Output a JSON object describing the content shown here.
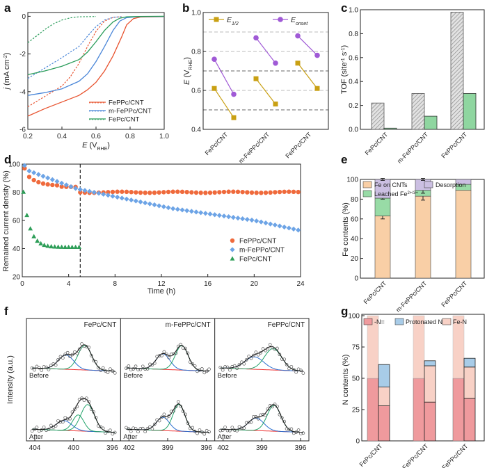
{
  "panels": {
    "a": "a",
    "b": "b",
    "c": "c",
    "d": "d",
    "e": "e",
    "f": "f",
    "g": "g"
  },
  "chart_data": [
    {
      "id": "a",
      "type": "line",
      "xlabel": "E (V RHE)",
      "ylabel": "j (mA cm-2)",
      "xlim": [
        0.2,
        1.0
      ],
      "ylim": [
        -6,
        0.2
      ],
      "xticks": [
        0.2,
        0.4,
        0.6,
        0.8,
        1.0
      ],
      "yticks": [
        0,
        -2,
        -4,
        -6
      ],
      "tick_labels_x": [
        "0.2",
        "0.4",
        "0.6",
        "0.8",
        "1.0"
      ],
      "tick_labels_y": [
        "0",
        "-2",
        "-4",
        "-6"
      ],
      "legend_position": "bottom-right",
      "series": [
        {
          "name": "FePPc/CNT",
          "color": "#e8532f",
          "solid": [
            [
              0.2,
              -5.3
            ],
            [
              0.3,
              -4.9
            ],
            [
              0.4,
              -4.55
            ],
            [
              0.5,
              -4.2
            ],
            [
              0.55,
              -3.9
            ],
            [
              0.6,
              -3.5
            ],
            [
              0.65,
              -2.9
            ],
            [
              0.7,
              -2.1
            ],
            [
              0.75,
              -1.1
            ],
            [
              0.78,
              -0.45
            ],
            [
              0.82,
              -0.12
            ],
            [
              0.86,
              -0.04
            ],
            [
              1.0,
              -0.02
            ]
          ],
          "dashed": [
            [
              0.2,
              -4.8
            ],
            [
              0.3,
              -4.25
            ],
            [
              0.4,
              -3.7
            ],
            [
              0.45,
              -3.2
            ],
            [
              0.5,
              -2.5
            ],
            [
              0.55,
              -1.6
            ],
            [
              0.6,
              -0.8
            ],
            [
              0.65,
              -0.25
            ],
            [
              0.7,
              -0.06
            ],
            [
              0.75,
              -0.02
            ]
          ]
        },
        {
          "name": "m-FePPc/CNT",
          "color": "#4a86d8",
          "solid": [
            [
              0.2,
              -4.2
            ],
            [
              0.3,
              -4.05
            ],
            [
              0.4,
              -3.85
            ],
            [
              0.5,
              -3.45
            ],
            [
              0.55,
              -3.05
            ],
            [
              0.6,
              -2.4
            ],
            [
              0.65,
              -1.6
            ],
            [
              0.7,
              -0.75
            ],
            [
              0.74,
              -0.25
            ],
            [
              0.78,
              -0.07
            ],
            [
              0.85,
              -0.02
            ],
            [
              1.0,
              -0.01
            ]
          ],
          "dashed": [
            [
              0.2,
              -3.3
            ],
            [
              0.3,
              -2.75
            ],
            [
              0.4,
              -2.2
            ],
            [
              0.5,
              -1.6
            ],
            [
              0.55,
              -1.05
            ],
            [
              0.6,
              -0.55
            ],
            [
              0.65,
              -0.2
            ],
            [
              0.7,
              -0.06
            ],
            [
              0.75,
              -0.02
            ]
          ]
        },
        {
          "name": "FePc/CNT",
          "color": "#2a9c5a",
          "solid": [
            [
              0.2,
              -3.1
            ],
            [
              0.3,
              -2.9
            ],
            [
              0.4,
              -2.65
            ],
            [
              0.5,
              -2.3
            ],
            [
              0.55,
              -1.9
            ],
            [
              0.6,
              -1.35
            ],
            [
              0.65,
              -0.75
            ],
            [
              0.7,
              -0.3
            ],
            [
              0.74,
              -0.1
            ],
            [
              0.78,
              -0.03
            ],
            [
              0.85,
              -0.01
            ],
            [
              1.0,
              0.0
            ]
          ],
          "dashed": [
            [
              0.2,
              -1.4
            ],
            [
              0.25,
              -1.05
            ],
            [
              0.3,
              -0.7
            ],
            [
              0.35,
              -0.4
            ],
            [
              0.4,
              -0.2
            ],
            [
              0.45,
              -0.08
            ],
            [
              0.5,
              -0.03
            ],
            [
              0.6,
              -0.01
            ]
          ]
        }
      ]
    },
    {
      "id": "b",
      "type": "scatter",
      "ylabel": "E (V RHE)",
      "ylim": [
        0.4,
        1.0
      ],
      "yticks": [
        0.4,
        0.6,
        0.8,
        1.0
      ],
      "tick_labels_y": [
        "0.4",
        "0.6",
        "0.8",
        "1.0"
      ],
      "categories": [
        "FePc/CNT",
        "m-FePPc/CNT",
        "FePPc/CNT"
      ],
      "reference_lines": [
        0.5,
        0.6,
        0.7,
        0.8,
        0.9
      ],
      "legend_position": "top",
      "series": [
        {
          "name": "E1/2",
          "color": "#c9a013",
          "values": [
            [
              0.61,
              0.46
            ],
            [
              0.66,
              0.53
            ],
            [
              0.74,
              0.61
            ]
          ]
        },
        {
          "name": "Eonset",
          "color": "#a05ad6",
          "values": [
            [
              0.76,
              0.58
            ],
            [
              0.87,
              0.74
            ],
            [
              0.88,
              0.78
            ]
          ]
        }
      ]
    },
    {
      "id": "c",
      "type": "bar",
      "ylabel": "TOF (site-1 s-1)",
      "ylim": [
        0,
        1.0
      ],
      "yticks": [
        0,
        0.2,
        0.4,
        0.6,
        0.8,
        1.0
      ],
      "tick_labels_y": [
        "0.0",
        "0.2",
        "0.4",
        "0.6",
        "0.8",
        "1.0"
      ],
      "categories": [
        "FePc/CNT",
        "m-FePPc/CNT",
        "FePPc/CNT"
      ],
      "series": [
        {
          "name": "hatched",
          "color": "#cccccc",
          "values": [
            0.22,
            0.3,
            0.98
          ]
        },
        {
          "name": "green",
          "color": "#8fd6a0",
          "values": [
            0.01,
            0.11,
            0.3
          ]
        }
      ]
    },
    {
      "id": "d",
      "type": "scatter",
      "xlabel": "Time (h)",
      "ylabel": "Remained current density (%)",
      "xlim": [
        0,
        24
      ],
      "ylim": [
        20,
        100
      ],
      "xticks": [
        0,
        4,
        8,
        12,
        16,
        20,
        24
      ],
      "yticks": [
        20,
        40,
        60,
        80,
        100
      ],
      "tick_labels_x": [
        "0",
        "4",
        "8",
        "12",
        "16",
        "20",
        "24"
      ],
      "tick_labels_y": [
        "20",
        "40",
        "60",
        "80",
        "100"
      ],
      "vline": 5,
      "legend_position": "bottom-right",
      "series": [
        {
          "name": "FePPc/CNT",
          "color": "#ef6a3c",
          "marker": "circle"
        },
        {
          "name": "m-FePPc/CNT",
          "color": "#6da4e6",
          "marker": "diamond"
        },
        {
          "name": "FePc/CNT",
          "color": "#2e9e58",
          "marker": "triangle"
        }
      ]
    },
    {
      "id": "e",
      "type": "bar",
      "ylabel": "Fe contents (%)",
      "ylim": [
        0,
        100
      ],
      "yticks": [
        0,
        20,
        40,
        60,
        80,
        100
      ],
      "tick_labels_y": [
        "0",
        "20",
        "40",
        "60",
        "80",
        "100"
      ],
      "categories": [
        "FePc/CNT",
        "m-FePPc/CNT",
        "FePPc/CNT"
      ],
      "legend_position": "top",
      "series": [
        {
          "name": "Fe on CNTs",
          "color": "#f9cfa6",
          "values": [
            63,
            83,
            89
          ],
          "err": [
            3,
            4,
            0
          ]
        },
        {
          "name": "Leached Fe2+/3+",
          "color": "#98dba6",
          "values": [
            18,
            6,
            6
          ],
          "err": [
            1,
            3,
            0
          ]
        },
        {
          "name": "Desorption",
          "color": "#cbbfe2",
          "values": [
            19,
            11,
            5
          ],
          "err": [
            1,
            1,
            0
          ]
        }
      ]
    },
    {
      "id": "f",
      "type": "line",
      "ylabel": "Intensity (a.u.)",
      "subpanels": [
        {
          "title": "FePc/CNT",
          "ticks": [
            "404",
            "400",
            "396"
          ]
        },
        {
          "title": "m-FePPc/CNT",
          "ticks": [
            "402",
            "399",
            "396"
          ]
        },
        {
          "title": "FePPc/CNT",
          "ticks": [
            "402",
            "399",
            "396"
          ]
        }
      ],
      "row_labels": [
        "Before",
        "After"
      ]
    },
    {
      "id": "g",
      "type": "bar",
      "ylabel": "N contents (%)",
      "ylim": [
        0,
        100
      ],
      "yticks": [
        0,
        25,
        50,
        75,
        100
      ],
      "tick_labels_y": [
        "0",
        "25",
        "50",
        "75",
        "100"
      ],
      "categories": [
        "FePc/CNT",
        "m-FePPc/CNT",
        "FePPc/CNT"
      ],
      "legend_position": "top",
      "groups": [
        {
          "before": {
            "N": 50,
            "FeN": 50
          },
          "after": {
            "N": 28,
            "FeN": 15,
            "Protonated": 18
          }
        },
        {
          "before": {
            "N": 50,
            "FeN": 50
          },
          "after": {
            "N": 31,
            "FeN": 29,
            "Protonated": 4
          }
        },
        {
          "before": {
            "N": 50,
            "FeN": 50
          },
          "after": {
            "N": 34,
            "FeN": 25,
            "Protonated": 7
          }
        }
      ],
      "series": [
        {
          "name": "-N=",
          "color": "#ef9a9d"
        },
        {
          "name": "Protonated N",
          "color": "#a8cce8"
        },
        {
          "name": "Fe-N",
          "color": "#f8d1c6"
        }
      ]
    }
  ]
}
